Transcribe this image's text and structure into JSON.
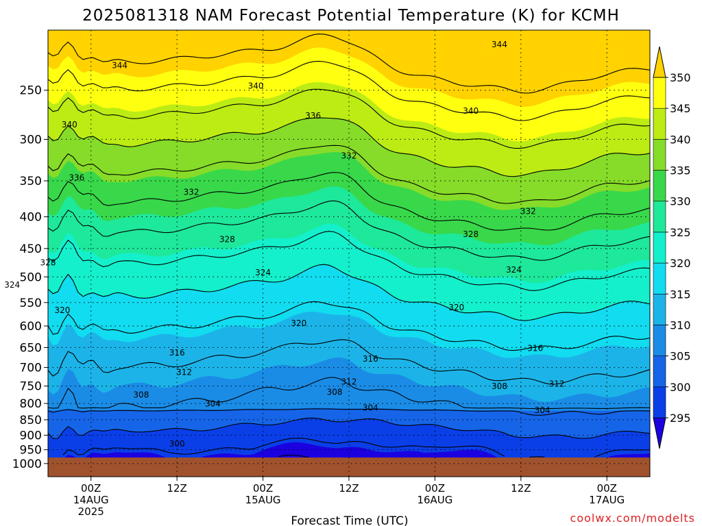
{
  "title": "2025081318 NAM Forecast Potential Temperature (K) for KCMH",
  "credit": "coolwx.com/modelts",
  "chart_data": {
    "type": "heatmap",
    "title": "2025081318 NAM Forecast Potential Temperature (K) for KCMH",
    "xlabel": "Forecast Time (UTC)",
    "ylabel": "",
    "x_range_hours_since_init": [
      0,
      84
    ],
    "x_ticks": [
      {
        "h": 6,
        "lines": [
          "00Z",
          "14AUG",
          "2025"
        ]
      },
      {
        "h": 18,
        "lines": [
          "12Z"
        ]
      },
      {
        "h": 30,
        "lines": [
          "00Z",
          "15AUG"
        ]
      },
      {
        "h": 42,
        "lines": [
          "12Z"
        ]
      },
      {
        "h": 54,
        "lines": [
          "00Z",
          "16AUG"
        ]
      },
      {
        "h": 66,
        "lines": [
          "12Z"
        ]
      },
      {
        "h": 78,
        "lines": [
          "00Z",
          "17AUG"
        ]
      }
    ],
    "y_scale": "log",
    "y_range": [
      1050,
      200
    ],
    "y_ticks": [
      "250",
      "300",
      "350",
      "400",
      "450",
      "500",
      "550",
      "600",
      "650",
      "700",
      "750",
      "800",
      "850",
      "900",
      "950",
      "1000"
    ],
    "contour_interval": 4,
    "fill_levels": [
      295,
      300,
      305,
      310,
      315,
      320,
      325,
      330,
      335,
      340,
      345,
      350
    ],
    "fill_colors": [
      "#1b00e0",
      "#0a3fe8",
      "#1665e8",
      "#1a8ce6",
      "#1cb4e8",
      "#12dcf0",
      "#14f0cc",
      "#1ee89a",
      "#38d84a",
      "#86dc28",
      "#bcec14",
      "#ffff10",
      "#ffd200"
    ],
    "colorbar_labels": [
      "295",
      "300",
      "305",
      "310",
      "315",
      "320",
      "325",
      "330",
      "335",
      "340",
      "345",
      "350"
    ],
    "ground_color": "#a0522d",
    "contour_labels": [
      {
        "v": "344",
        "h": 10,
        "p": 228
      },
      {
        "v": "344",
        "h": 63,
        "p": 211
      },
      {
        "v": "340",
        "h": 3,
        "p": 284
      },
      {
        "v": "340",
        "h": 29,
        "p": 246
      },
      {
        "v": "340",
        "h": 59,
        "p": 270
      },
      {
        "v": "336",
        "h": 37,
        "p": 275
      },
      {
        "v": "336",
        "h": 4,
        "p": 346
      },
      {
        "v": "332",
        "h": 20,
        "p": 365
      },
      {
        "v": "332",
        "h": 42,
        "p": 319
      },
      {
        "v": "332",
        "h": 67,
        "p": 392
      },
      {
        "v": "328",
        "h": 0,
        "p": 474
      },
      {
        "v": "328",
        "h": 25,
        "p": 435
      },
      {
        "v": "328",
        "h": 59,
        "p": 427
      },
      {
        "v": "324",
        "h": 30,
        "p": 492
      },
      {
        "v": "324",
        "h": 65,
        "p": 487
      },
      {
        "v": "324",
        "h": -5,
        "p": 515
      },
      {
        "v": "320",
        "h": 2,
        "p": 566
      },
      {
        "v": "320",
        "h": 35,
        "p": 594
      },
      {
        "v": "320",
        "h": 57,
        "p": 560
      },
      {
        "v": "316",
        "h": 18,
        "p": 663
      },
      {
        "v": "316",
        "h": 45,
        "p": 678
      },
      {
        "v": "316",
        "h": 68,
        "p": 652
      },
      {
        "v": "312",
        "h": 19,
        "p": 712
      },
      {
        "v": "312",
        "h": 42,
        "p": 738
      },
      {
        "v": "312",
        "h": 71,
        "p": 744
      },
      {
        "v": "308",
        "h": 13,
        "p": 775
      },
      {
        "v": "308",
        "h": 40,
        "p": 767
      },
      {
        "v": "308",
        "h": 63,
        "p": 751
      },
      {
        "v": "304",
        "h": 23,
        "p": 801
      },
      {
        "v": "304",
        "h": 45,
        "p": 813
      },
      {
        "v": "304",
        "h": 69,
        "p": 820
      },
      {
        "v": "300",
        "h": 18,
        "p": 929
      }
    ]
  }
}
